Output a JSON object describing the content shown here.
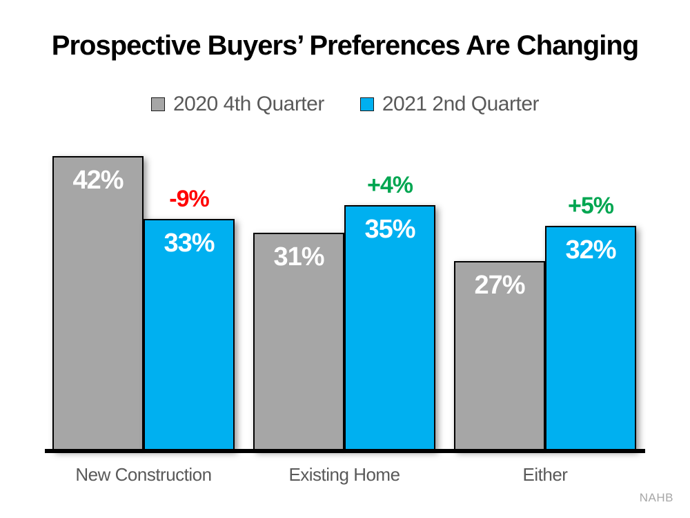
{
  "title": "Prospective Buyers’ Preferences Are Changing",
  "legend": [
    {
      "label": "2020 4th Quarter",
      "color": "#A6A6A6"
    },
    {
      "label": "2021 2nd Quarter",
      "color": "#00B0F0"
    }
  ],
  "source": "NAHB",
  "colors": {
    "bar_gray": "#A6A6A6",
    "bar_blue": "#00B0F0",
    "bar_border": "#000000",
    "axis": "#000000",
    "value_label_text": "#FFFFFF",
    "legend_text": "#595959",
    "category_text": "#595959",
    "negative_change": "#FF0000",
    "positive_change": "#00A651",
    "source_text": "#A6A6A6"
  },
  "chart_data": {
    "type": "bar",
    "title": "Prospective Buyers’ Preferences Are Changing",
    "categories": [
      "New Construction",
      "Existing Home",
      "Either"
    ],
    "series": [
      {
        "name": "2020 4th Quarter",
        "color": "#A6A6A6",
        "values": [
          42,
          31,
          27
        ],
        "labels": [
          "42%",
          "31%",
          "27%"
        ]
      },
      {
        "name": "2021 2nd Quarter",
        "color": "#00B0F0",
        "values": [
          33,
          35,
          32
        ],
        "labels": [
          "33%",
          "35%",
          "32%"
        ]
      }
    ],
    "change_labels": [
      {
        "text": "-9%",
        "color": "#FF0000"
      },
      {
        "text": "+4%",
        "color": "#00A651"
      },
      {
        "text": "+5%",
        "color": "#00A651"
      }
    ],
    "xlabel": "",
    "ylabel": "",
    "ylim": [
      0,
      45
    ],
    "grid": false,
    "y_axis_visible": false,
    "legend_position": "top",
    "source": "NAHB"
  }
}
